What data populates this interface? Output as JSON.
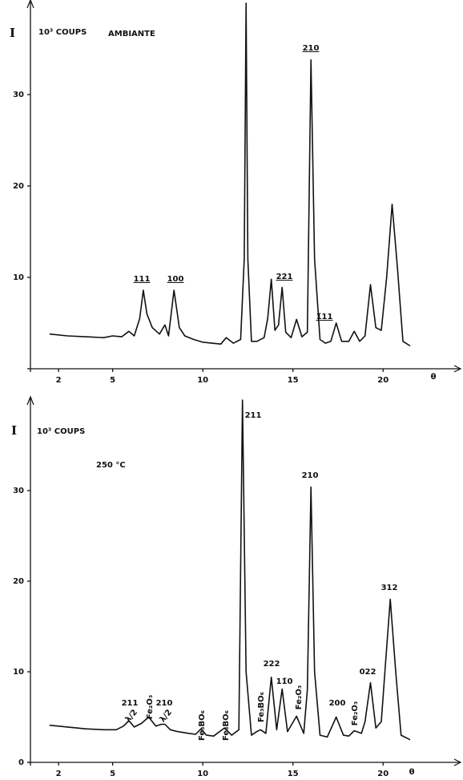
{
  "chart_data": [
    {
      "type": "line",
      "annotation": "AMBIANTE",
      "y_label": "I",
      "y_unit": "10³ COUPS",
      "x_label": "θ",
      "xlim": [
        0.44,
        24.3
      ],
      "ylim": [
        0,
        40
      ],
      "xticks": [
        2,
        5,
        10,
        15,
        20
      ],
      "yticks": [
        10,
        20,
        30
      ],
      "color": "#111111",
      "x": [
        1.5,
        2.5,
        3.5,
        4.5,
        5.0,
        5.5,
        5.9,
        6.2,
        6.5,
        6.7,
        6.9,
        7.2,
        7.6,
        7.9,
        8.1,
        8.4,
        8.7,
        9.0,
        9.5,
        10.0,
        10.5,
        11.0,
        11.3,
        11.7,
        12.1,
        12.3,
        12.4,
        12.5,
        12.7,
        13.0,
        13.4,
        13.6,
        13.8,
        14.0,
        14.2,
        14.4,
        14.6,
        14.9,
        15.2,
        15.5,
        15.8,
        16.0,
        16.2,
        16.5,
        16.8,
        17.1,
        17.4,
        17.7,
        18.1,
        18.4,
        18.7,
        19.0,
        19.3,
        19.6,
        19.9,
        20.2,
        20.5,
        20.8,
        21.1,
        21.5
      ],
      "values": [
        3.8,
        3.6,
        3.5,
        3.4,
        3.6,
        3.5,
        4.1,
        3.6,
        5.5,
        8.6,
        6.0,
        4.5,
        3.8,
        4.8,
        3.6,
        8.6,
        4.5,
        3.6,
        3.2,
        2.9,
        2.8,
        2.7,
        3.4,
        2.8,
        3.2,
        12,
        40,
        12,
        3.0,
        3.0,
        3.4,
        5.5,
        9.8,
        4.2,
        4.8,
        8.9,
        4.0,
        3.4,
        5.4,
        3.5,
        4.0,
        33.8,
        12,
        3.2,
        2.8,
        3.0,
        5.0,
        3.0,
        3.0,
        4.1,
        3.0,
        3.6,
        9.2,
        4.5,
        4.2,
        10,
        18,
        11,
        3.0,
        2.5
      ],
      "peak_labels": [
        "111",
        "100",
        "221",
        "210",
        "1̄11"
      ],
      "label_underline": true
    },
    {
      "type": "line",
      "annotation": "250 °C",
      "y_label": "I",
      "y_unit": "10³ COUPS",
      "x_label": "θ",
      "xlim": [
        0.44,
        24.3
      ],
      "ylim": [
        0,
        40
      ],
      "xticks": [
        2,
        5,
        10,
        15,
        20
      ],
      "yticks": [
        0,
        10,
        20,
        30
      ],
      "color": "#111111",
      "x": [
        1.5,
        2.5,
        3.5,
        4.5,
        5.2,
        5.6,
        5.9,
        6.2,
        6.6,
        7.0,
        7.4,
        7.7,
        7.9,
        8.2,
        8.6,
        9.2,
        9.6,
        9.9,
        10.2,
        10.6,
        11.2,
        11.6,
        12.0,
        12.2,
        12.4,
        12.7,
        13.0,
        13.2,
        13.5,
        13.8,
        14.1,
        14.4,
        14.7,
        15.2,
        15.6,
        15.8,
        16.0,
        16.2,
        16.5,
        16.9,
        17.4,
        17.8,
        18.1,
        18.4,
        18.8,
        19.0,
        19.3,
        19.6,
        19.9,
        20.1,
        20.4,
        20.7,
        21.0,
        21.5
      ],
      "values": [
        4.1,
        3.9,
        3.7,
        3.6,
        3.6,
        4.0,
        4.6,
        3.9,
        4.3,
        5.0,
        4.0,
        4.2,
        4.2,
        3.6,
        3.4,
        3.2,
        3.1,
        3.7,
        3.0,
        2.9,
        3.8,
        3.0,
        3.6,
        40,
        10,
        3.0,
        3.4,
        3.6,
        3.2,
        9.4,
        3.6,
        8.1,
        3.4,
        5.1,
        3.2,
        8,
        30.4,
        10,
        3.0,
        2.8,
        5.0,
        3.0,
        2.9,
        3.5,
        3.2,
        4.5,
        8.8,
        3.8,
        4.5,
        10,
        18,
        10,
        3.0,
        2.5
      ],
      "peak_labels": [
        "211",
        "λ/2",
        "Fe₂O₃",
        "210",
        "λ/2",
        "Fe₃BO₆",
        "Fe₃BO₆",
        "211",
        "Fe₃BO₆",
        "222",
        "11̄0",
        "Fe₂O₃",
        "210",
        "200",
        "Fe₂O₃",
        "022",
        "312"
      ],
      "label_underline": false
    }
  ]
}
